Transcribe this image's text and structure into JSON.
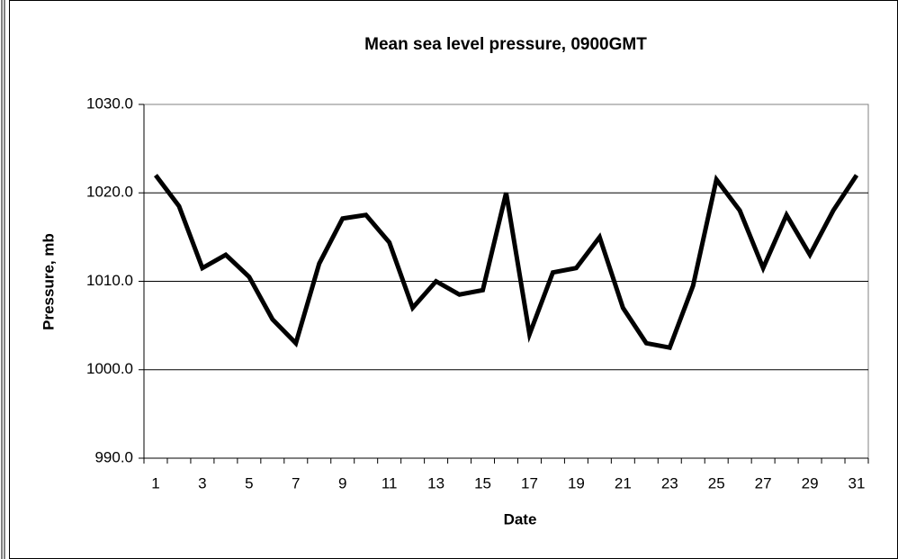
{
  "chart_data": {
    "type": "line",
    "title": "Mean sea level pressure, 0900GMT",
    "x_label": "Date",
    "y_label": "Pressure, mb",
    "categories": [
      "1",
      null,
      "3",
      null,
      "5",
      null,
      "7",
      null,
      "9",
      null,
      "11",
      null,
      "13",
      null,
      "15",
      null,
      "17",
      null,
      "19",
      null,
      "21",
      null,
      "23",
      null,
      "25",
      null,
      "27",
      null,
      "29",
      null,
      "31"
    ],
    "series": [
      {
        "name": "Pressure",
        "color": "#000000",
        "values": [
          1022.0,
          1018.5,
          1011.5,
          1013.0,
          1010.5,
          1005.7,
          1003.0,
          1012.0,
          1017.1,
          1017.5,
          1014.4,
          1007.0,
          1010.0,
          1008.5,
          1009.0,
          1020.0,
          1004.0,
          1011.0,
          1011.5,
          1015.0,
          1007.0,
          1003.0,
          1002.5,
          1009.5,
          1021.5,
          1018.0,
          1011.5,
          1017.5,
          1013.0,
          1018.0,
          1022.0
        ]
      }
    ],
    "ylim": [
      990,
      1030
    ],
    "yticks": [
      {
        "value": 990,
        "label": "990.0"
      },
      {
        "value": 1000,
        "label": "1000.0"
      },
      {
        "value": 1010,
        "label": "1010.0"
      },
      {
        "value": 1020,
        "label": "1020.0"
      },
      {
        "value": 1030,
        "label": "1030.0"
      }
    ],
    "grid": true
  }
}
